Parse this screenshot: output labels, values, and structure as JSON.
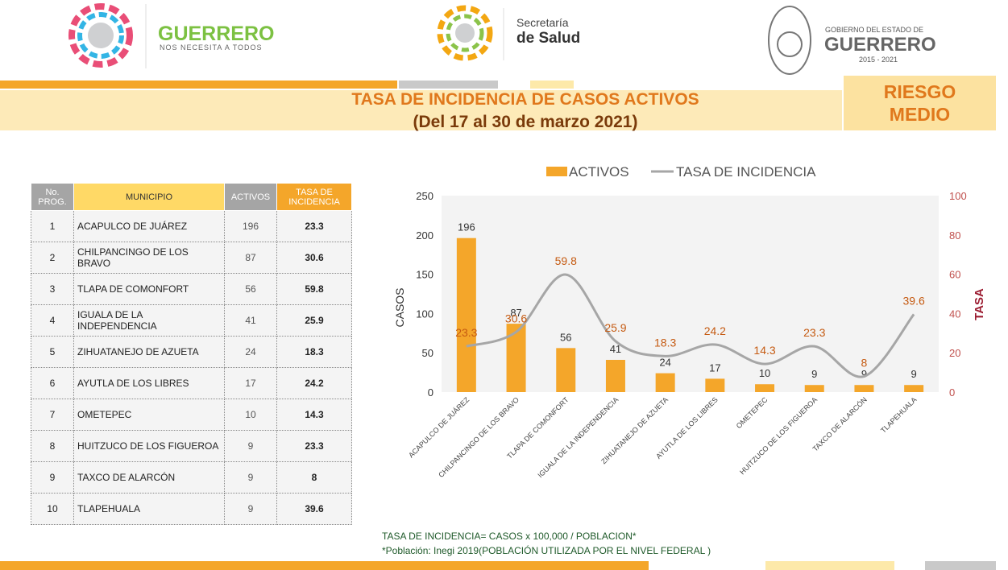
{
  "header": {
    "brand": "GUERRERO",
    "tagline": "NOS NECESITA A TODOS",
    "secretaria": "Secretaría",
    "salud": "de Salud",
    "gobierno": "GOBIERNO DEL ESTADO DE",
    "estado": "GUERRERO",
    "periodo": "2015 - 2021",
    "title": "TASA DE INCIDENCIA DE CASOS ACTIVOS",
    "subtitle": "(Del 17 al 30 de marzo 2021)",
    "risk": "RIESGO MEDIO"
  },
  "table": {
    "header": [
      "No. PROG.",
      "MUNICIPIO",
      "ACTIVOS",
      "TASA DE INCIDENCIA"
    ],
    "rows": [
      [
        1,
        "ACAPULCO DE JUÁREZ",
        196,
        23.3
      ],
      [
        2,
        "CHILPANCINGO DE LOS BRAVO",
        87,
        30.6
      ],
      [
        3,
        "TLAPA DE COMONFORT",
        56,
        59.8
      ],
      [
        4,
        "IGUALA DE LA INDEPENDENCIA",
        41,
        25.9
      ],
      [
        5,
        "ZIHUATANEJO DE AZUETA",
        24,
        18.3
      ],
      [
        6,
        "AYUTLA DE LOS LIBRES",
        17,
        24.2
      ],
      [
        7,
        "OMETEPEC",
        10,
        14.3
      ],
      [
        8,
        "HUITZUCO DE LOS FIGUEROA",
        9,
        23.3
      ],
      [
        9,
        "TAXCO DE ALARCÓN",
        9,
        8
      ],
      [
        10,
        "TLAPEHUALA",
        9,
        39.6
      ]
    ]
  },
  "chart_data": {
    "type": "bar",
    "y_label": "CASOS",
    "y2_label": "TASA",
    "categories": [
      "ACAPULCO DE JUÁREZ",
      "CHILPANCINGO DE LOS BRAVO",
      "TLAPA DE COMONFORT",
      "IGUALA DE LA INDEPENDENCIA",
      "ZIHUATANEJO DE AZUETA",
      "AYUTLA DE LOS LIBRES",
      "OMETEPEC",
      "HUITZUCO DE LOS FIGUEROA",
      "TAXCO DE ALARCÓN",
      "TLAPEHUALA"
    ],
    "series": [
      {
        "name": "ACTIVOS",
        "color": "#f4a62a",
        "values": [
          196,
          87,
          56,
          41,
          24,
          17,
          10,
          9,
          9,
          9
        ]
      },
      {
        "name": "TASA DE INCIDENCIA",
        "color": "#a6a6a6",
        "axis": "y2",
        "values": [
          23.3,
          30.6,
          59.8,
          25.9,
          18.3,
          24.2,
          14.3,
          23.3,
          8,
          39.6
        ]
      }
    ],
    "ylim": [
      0,
      250
    ],
    "yticks": [
      0,
      50,
      100,
      150,
      200,
      250
    ],
    "y2lim": [
      0,
      100
    ],
    "y2ticks": [
      0,
      20,
      40,
      60,
      80,
      100
    ]
  },
  "footnotes": [
    "TASA DE INCIDENCIA= CASOS x 100,000 / POBLACION*",
    "*Población: Inegi 2019(POBLACIÓN UTILIZADA POR EL NIVEL FEDERAL )"
  ]
}
